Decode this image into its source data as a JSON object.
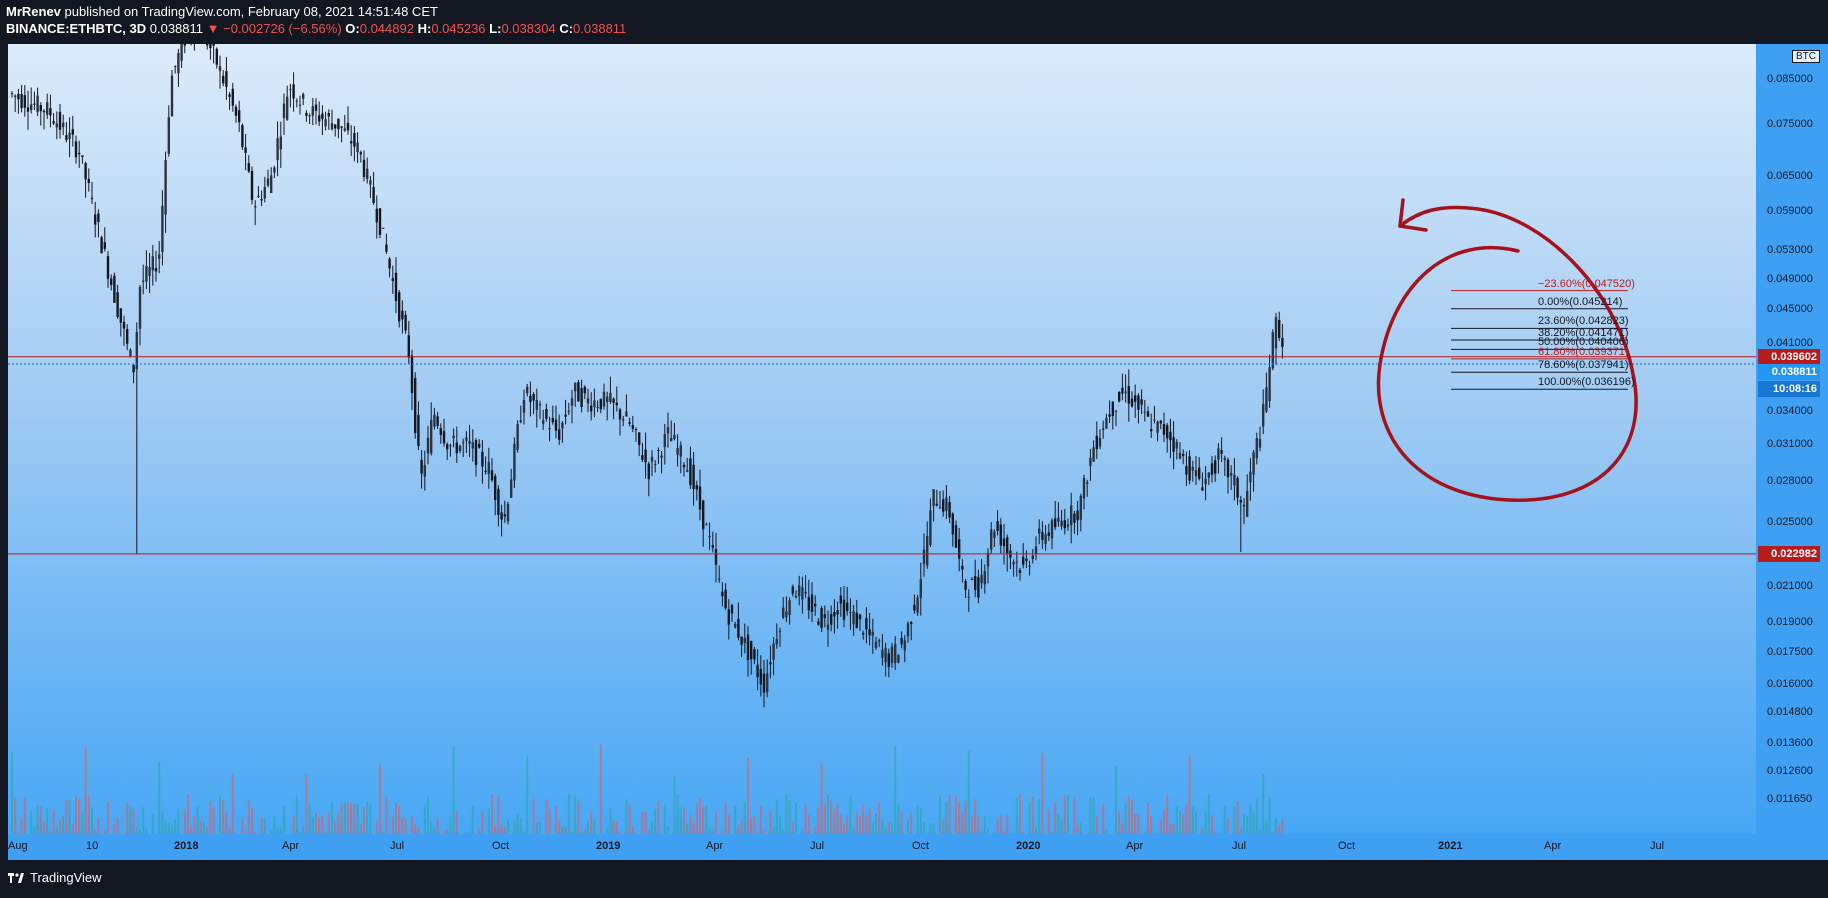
{
  "header": {
    "author": "MrRenev",
    "published_text": "published on TradingView.com, February 08, 2021 14:51:48 CET",
    "symbol": "BINANCE:ETHBTC, 3D",
    "last_price": "0.038811",
    "change": "▼ −0.002726 (−6.56%)",
    "o_label": "O:",
    "o_value": "0.044892",
    "h_label": "H:",
    "h_value": "0.045236",
    "l_label": "L:",
    "l_value": "0.038304",
    "c_label": "C:",
    "c_value": "0.038811"
  },
  "price_axis": {
    "currency": "BTC",
    "labels": [
      "0.085000",
      "0.075000",
      "0.065000",
      "0.059000",
      "0.053000",
      "0.049000",
      "0.045000",
      "0.041000",
      "0.034000",
      "0.031000",
      "0.028000",
      "0.025000",
      "0.021000",
      "0.019000",
      "0.017500",
      "0.016000",
      "0.014800",
      "0.013600",
      "0.012600",
      "0.011650"
    ],
    "badges": {
      "resistance": "0.039602",
      "last": "0.038811",
      "countdown": "10:08:16",
      "support": "0.022982"
    }
  },
  "fib_levels": [
    {
      "label": "−23.60%(0.047520)",
      "price": 0.04752,
      "color": "#b71c1c"
    },
    {
      "label": "0.00%(0.045214)",
      "price": 0.045214,
      "color": "#131722"
    },
    {
      "label": "23.60%(0.042823)",
      "price": 0.042823,
      "color": "#131722"
    },
    {
      "label": "38.20%(0.041471)",
      "price": 0.041471,
      "color": "#131722"
    },
    {
      "label": "50.00%(0.040406)",
      "price": 0.040406,
      "color": "#131722"
    },
    {
      "label": "61.80%(0.039371)",
      "price": 0.039371,
      "color": "#b71c1c"
    },
    {
      "label": "78.60%(0.037941)",
      "price": 0.037941,
      "color": "#131722"
    },
    {
      "label": "100.00%(0.036196)",
      "price": 0.036196,
      "color": "#131722"
    }
  ],
  "time_axis": {
    "labels": [
      {
        "text": "Aug",
        "bold": false
      },
      {
        "text": "10",
        "bold": false
      },
      {
        "text": "2018",
        "bold": true
      },
      {
        "text": "Apr",
        "bold": false
      },
      {
        "text": "Jul",
        "bold": false
      },
      {
        "text": "Oct",
        "bold": false
      },
      {
        "text": "2019",
        "bold": true
      },
      {
        "text": "Apr",
        "bold": false
      },
      {
        "text": "Jul",
        "bold": false
      },
      {
        "text": "Oct",
        "bold": false
      },
      {
        "text": "2020",
        "bold": true
      },
      {
        "text": "Apr",
        "bold": false
      },
      {
        "text": "Jul",
        "bold": false
      },
      {
        "text": "Oct",
        "bold": false
      },
      {
        "text": "2021",
        "bold": true
      },
      {
        "text": "Apr",
        "bold": false
      },
      {
        "text": "Jul",
        "bold": false
      }
    ]
  },
  "footer": {
    "brand": "TradingView"
  },
  "colors": {
    "accent": "#2962ff",
    "down": "#ef5350",
    "resistance": "#b71c1c",
    "last_badge": "#2196f3"
  }
}
